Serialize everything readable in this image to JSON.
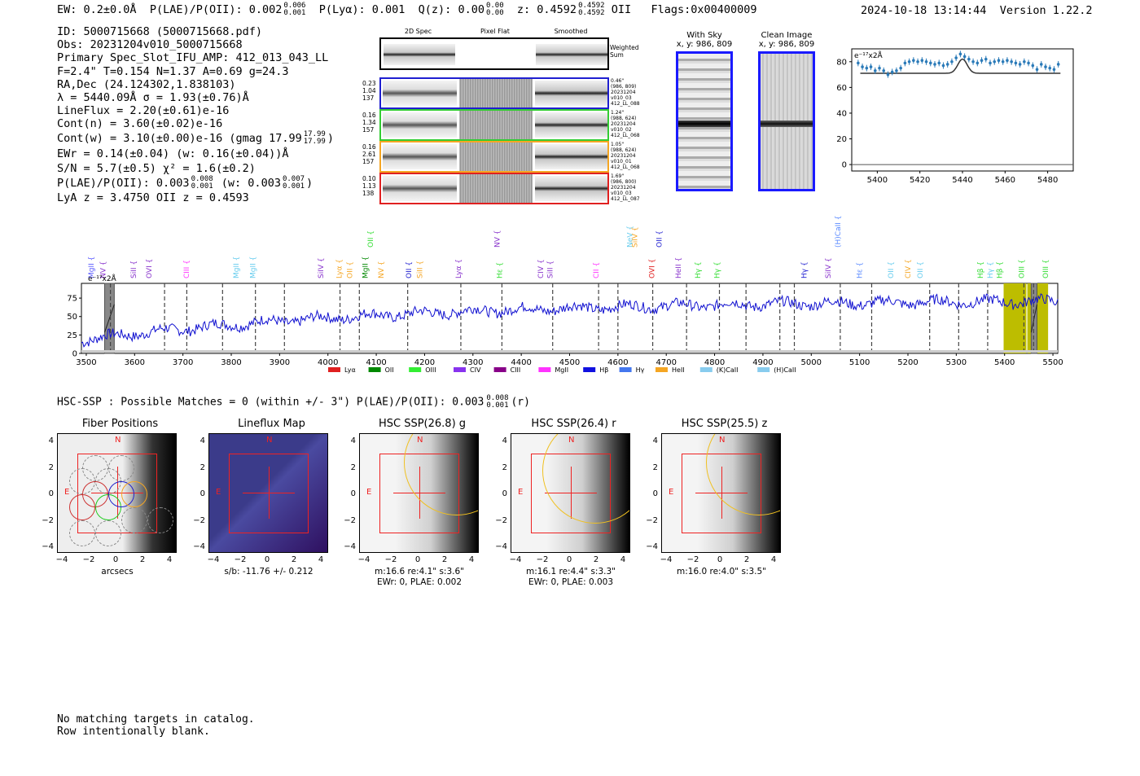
{
  "header": {
    "ew": "EW: 0.2±0.0Å",
    "plae": "P(LAE)/P(OII): 0.002",
    "plae_up": "0.006",
    "plae_lo": "0.001",
    "plya": "P(Lyα): 0.001",
    "qz": "Q(z): 0.00",
    "qz_up": "0.00",
    "qz_lo": "0.00",
    "z": "z: 0.4592",
    "z_up": "0.4592",
    "z_lo": "0.4592",
    "z_line": "OII",
    "flags": "Flags:0x00400009",
    "timestamp": "2024-10-18 13:14:44",
    "version": "Version 1.22.2"
  },
  "info": {
    "lines": [
      "ID: 5000715668 (5000715668.pdf)",
      "Obs: 20231204v010_5000715668",
      "Primary Spec_Slot_IFU_AMP: 412_013_043_LL",
      "F=2.4\"  T=0.154  N=1.37  A=0.69  g=24.3",
      "RA,Dec (24.124302,1.838103)",
      "λ = 5440.09Å  σ = 1.93(±0.76)Å",
      "LineFlux = 2.20(±0.61)e-16",
      "Cont(n) = 3.60(±0.02)e-16",
      "Cont(w) = 3.10(±0.00)e-16 (gmag 17.99",
      "EWr = 0.14(±0.04) (w: 0.16(±0.04))Å",
      "S/N = 5.7(±0.5)  χ² = 1.6(±0.2)",
      "P(LAE)/P(OII): 0.003",
      "LyA z = 3.4750  OII z = 0.4593"
    ],
    "gmag_up": "17.99",
    "gmag_lo": "17.99",
    "plae2_up": "0.008",
    "plae2_lo": "0.001",
    "plae2_tail": "(w: 0.003",
    "plae2_w_up": "0.007",
    "plae2_w_lo": "0.001"
  },
  "spec2d": {
    "col_2d": "2D Spec",
    "col_flat": "Pixel Flat",
    "col_smooth": "Smoothed",
    "weighted": "Weighted Sum",
    "rows": [
      {
        "color": "#1f1fd0",
        "left": [
          "0.23",
          "1.04",
          "137"
        ],
        "right": [
          "0.46\"",
          "(986, 809)",
          "20231204",
          "v010_03",
          "412_LL_088"
        ]
      },
      {
        "color": "#33cc33",
        "left": [
          "0.16",
          "1.34",
          "157"
        ],
        "right": [
          "1.24\"",
          "(988, 624)",
          "20231204",
          "v010_02",
          "412_LL_068"
        ]
      },
      {
        "color": "#f5a623",
        "left": [
          "0.16",
          "2.61",
          "157"
        ],
        "right": [
          "1.05\"",
          "(988, 624)",
          "20231204",
          "v010_01",
          "412_LL_068"
        ]
      },
      {
        "color": "#e02020",
        "left": [
          "0.10",
          "1.13",
          "138"
        ],
        "right": [
          "1.69\"",
          "(986, 800)",
          "20231204",
          "v010_03",
          "412_LL_087"
        ]
      }
    ]
  },
  "sky": {
    "with_sky_title": "With Sky",
    "with_sky_coord": "x, y: 986, 809",
    "clean_title": "Clean Image",
    "clean_coord": "x, y: 986, 809"
  },
  "zoom_chart": {
    "ylabel_unit": "e⁻¹⁷x2Å",
    "x_ticks": [
      "5400",
      "5420",
      "5440",
      "5460",
      "5480"
    ],
    "y_ticks": [
      "0",
      "20",
      "40",
      "60",
      "80"
    ],
    "xlim": [
      5388,
      5492
    ],
    "ylim": [
      -5,
      90
    ],
    "data": [
      [
        5391,
        79
      ],
      [
        5393,
        76
      ],
      [
        5395,
        75
      ],
      [
        5397,
        76
      ],
      [
        5399,
        73
      ],
      [
        5401,
        75
      ],
      [
        5403,
        73
      ],
      [
        5405,
        70
      ],
      [
        5407,
        72
      ],
      [
        5409,
        73
      ],
      [
        5411,
        75
      ],
      [
        5413,
        79
      ],
      [
        5415,
        80
      ],
      [
        5417,
        81
      ],
      [
        5419,
        80
      ],
      [
        5421,
        81
      ],
      [
        5423,
        80
      ],
      [
        5425,
        79
      ],
      [
        5427,
        78
      ],
      [
        5429,
        79
      ],
      [
        5431,
        77
      ],
      [
        5433,
        78
      ],
      [
        5435,
        80
      ],
      [
        5437,
        83
      ],
      [
        5439,
        86
      ],
      [
        5441,
        84
      ],
      [
        5443,
        82
      ],
      [
        5445,
        80
      ],
      [
        5447,
        79
      ],
      [
        5449,
        81
      ],
      [
        5451,
        82
      ],
      [
        5453,
        79
      ],
      [
        5455,
        80
      ],
      [
        5457,
        81
      ],
      [
        5459,
        80
      ],
      [
        5461,
        81
      ],
      [
        5463,
        80
      ],
      [
        5465,
        79
      ],
      [
        5467,
        78
      ],
      [
        5469,
        80
      ],
      [
        5471,
        79
      ],
      [
        5473,
        77
      ],
      [
        5475,
        74
      ],
      [
        5477,
        78
      ],
      [
        5479,
        76
      ],
      [
        5481,
        75
      ],
      [
        5483,
        74
      ],
      [
        5485,
        78
      ]
    ],
    "model_base": 71,
    "model_peak": 11,
    "model_center": 5440,
    "model_sigma": 2.2
  },
  "full_spectrum": {
    "ylabel_unit": "e⁻¹⁷x2Å",
    "x_ticks": [
      "3500",
      "3600",
      "3700",
      "3800",
      "3900",
      "4000",
      "4100",
      "4200",
      "4300",
      "4400",
      "4500",
      "4600",
      "4700",
      "4800",
      "4900",
      "5000",
      "5100",
      "5200",
      "5300",
      "5400",
      "5500"
    ],
    "y_ticks": [
      "0",
      "25",
      "50",
      "75"
    ],
    "xlim": [
      3490,
      5510
    ],
    "ylim": [
      0,
      95
    ],
    "dashed_lines": [
      3550,
      3662,
      3708,
      3782,
      3850,
      3910,
      4025,
      4065,
      4165,
      4275,
      4360,
      4465,
      4560,
      4600,
      4672,
      4742,
      4810,
      4865,
      4935,
      4965,
      5060,
      5125,
      5245,
      5305,
      5365,
      5440,
      5460
    ],
    "yellow_bands": [
      [
        5398,
        5445
      ],
      [
        5447,
        5490
      ]
    ],
    "gray_bands": [
      [
        3538,
        3558
      ],
      [
        5455,
        5467
      ]
    ],
    "emission_labels": [
      {
        "w": 3515,
        "t": "MgII",
        "c": "#5a5aff"
      },
      {
        "w": 3540,
        "t": "NV",
        "c": "#8833cc"
      },
      {
        "w": 3603,
        "t": "SiII",
        "c": "#8833cc"
      },
      {
        "w": 3635,
        "t": "OVI",
        "c": "#8833cc"
      },
      {
        "w": 3712,
        "t": "CIII",
        "c": "#ff33ff"
      },
      {
        "w": 3815,
        "t": "MgII",
        "c": "#66ccee"
      },
      {
        "w": 3850,
        "t": "MgII",
        "c": "#66ccee"
      },
      {
        "w": 3990,
        "t": "SiIV",
        "c": "#8833cc"
      },
      {
        "w": 4028,
        "t": "Lyα",
        "c": "#f5a623"
      },
      {
        "w": 4050,
        "t": "OII",
        "c": "#f5a623"
      },
      {
        "w": 4082,
        "t": "MgII",
        "c": "#008800"
      },
      {
        "w": 4115,
        "t": "NV",
        "c": "#f5a623"
      },
      {
        "w": 4172,
        "t": "OII",
        "c": "#1f1fd0"
      },
      {
        "w": 4195,
        "t": "SiII",
        "c": "#f5a623"
      },
      {
        "w": 4275,
        "t": "Lyα",
        "c": "#8833cc"
      },
      {
        "w": 4360,
        "t": "Hε",
        "c": "#33dd33"
      },
      {
        "w": 4445,
        "t": "CIV",
        "c": "#8833cc"
      },
      {
        "w": 4465,
        "t": "SiII",
        "c": "#8833cc"
      },
      {
        "w": 4560,
        "t": "CII",
        "c": "#ff33ff"
      },
      {
        "w": 4675,
        "t": "OVI",
        "c": "#e02020"
      },
      {
        "w": 4730,
        "t": "HeII",
        "c": "#8833cc"
      },
      {
        "w": 4770,
        "t": "Hγ",
        "c": "#33dd33"
      },
      {
        "w": 4810,
        "t": "Hγ",
        "c": "#33dd33"
      },
      {
        "w": 4990,
        "t": "Hγ",
        "c": "#1f1fd0"
      },
      {
        "w": 5040,
        "t": "SiIV",
        "c": "#8833cc"
      },
      {
        "w": 5105,
        "t": "Hε",
        "c": "#5a8aff"
      },
      {
        "w": 5170,
        "t": "OII",
        "c": "#66ccee"
      },
      {
        "w": 5205,
        "t": "CIV",
        "c": "#f5a623"
      },
      {
        "w": 5230,
        "t": "OII",
        "c": "#66ccee"
      },
      {
        "w": 5355,
        "t": "Hβ",
        "c": "#33dd33"
      },
      {
        "w": 5375,
        "t": "Hγ",
        "c": "#66ccee"
      },
      {
        "w": 5395,
        "t": "Hβ",
        "c": "#33dd33"
      },
      {
        "w": 5440,
        "t": "OIII",
        "c": "#33dd33"
      },
      {
        "w": 5490,
        "t": "OIII",
        "c": "#33dd33"
      }
    ],
    "upper_labels": [
      {
        "w": 4093,
        "t": "OII",
        "c": "#33dd33"
      },
      {
        "w": 4355,
        "t": "NV",
        "c": "#8833cc"
      },
      {
        "w": 4630,
        "t": "NeV",
        "c": "#66ccee"
      },
      {
        "w": 4640,
        "t": "SiIV",
        "c": "#f5a623"
      },
      {
        "w": 4690,
        "t": "OII",
        "c": "#1f1fd0"
      },
      {
        "w": 5060,
        "t": "(H)CaII",
        "c": "#5a8aff"
      }
    ],
    "legend": [
      {
        "t": "Lyα",
        "c": "#e02020"
      },
      {
        "t": "OII",
        "c": "#008800"
      },
      {
        "t": "OIII",
        "c": "#33ee33"
      },
      {
        "t": "CIV",
        "c": "#8833ee"
      },
      {
        "t": "CIII",
        "c": "#880088"
      },
      {
        "t": "MgII",
        "c": "#ff33ff"
      },
      {
        "t": "Hβ",
        "c": "#1010e0"
      },
      {
        "t": "Hγ",
        "c": "#4477ee"
      },
      {
        "t": "HeII",
        "c": "#f5a623"
      },
      {
        "t": "(K)CaII",
        "c": "#88ccee"
      },
      {
        "t": "(H)CaII",
        "c": "#88ccee"
      }
    ]
  },
  "hsc": {
    "summary": "HSC-SSP : Possible Matches = 0 (within +/- 3\")  P(LAE)/P(OII): 0.003",
    "summary_up": "0.008",
    "summary_lo": "0.001",
    "summary_tail": "(r)",
    "ticks": [
      "−4",
      "−2",
      "0",
      "2",
      "4"
    ],
    "north": "N",
    "east": "E",
    "panels": [
      {
        "title": "Fiber Positions",
        "caption": [
          "arcsecs"
        ]
      },
      {
        "title": "Lineflux Map",
        "caption": [
          "s/b: -11.76 +/- 0.212"
        ]
      },
      {
        "title": "HSC SSP(26.8) g",
        "caption": [
          "m:16.6  re:4.1\"  s:3.6\"",
          "EWr: 0, PLAE: 0.002"
        ]
      },
      {
        "title": "HSC SSP(26.4) r",
        "caption": [
          "m:16.1  re:4.4\"  s:3.3\"",
          "EWr: 0, PLAE: 0.003"
        ]
      },
      {
        "title": "HSC SSP(25.5) z",
        "caption": [
          "m:16.0  re:4.0\"  s:3.5\""
        ]
      }
    ]
  },
  "footer": {
    "line1": "No matching targets in catalog.",
    "line2": "Row intentionally blank."
  }
}
